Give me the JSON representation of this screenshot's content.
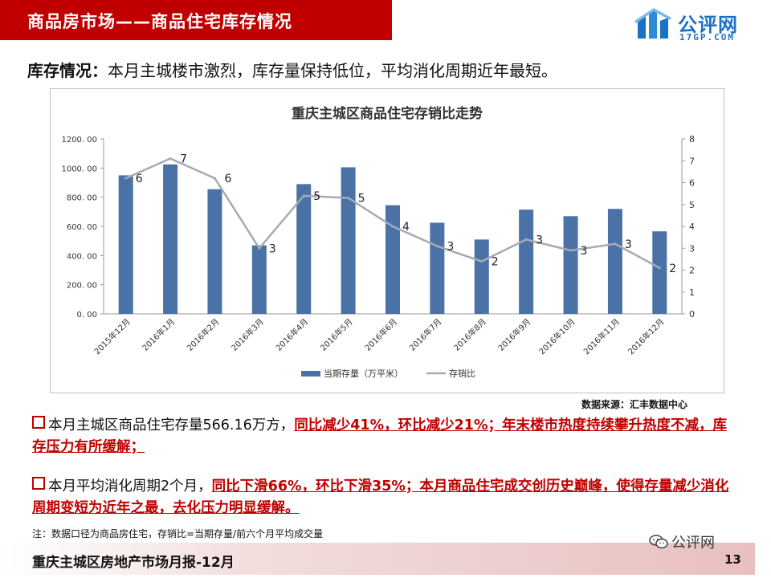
{
  "header": {
    "title": "商品房市场——商品住宅库存情况"
  },
  "logo": {
    "text": "公评网",
    "sub": "17GP.COM"
  },
  "headline": {
    "label": "库存情况：",
    "text": "本月主城楼市激烈，库存量保持低位，平均消化周期近年最短。"
  },
  "chart_data": {
    "type": "bar+line",
    "title": "重庆主城区商品住宅存销比走势",
    "categories": [
      "2015年12月",
      "2016年1月",
      "2016年2月",
      "2016年3月",
      "2016年4月",
      "2016年5月",
      "2016年6月",
      "2016年7月",
      "2016年8月",
      "2016年9月",
      "2016年10月",
      "2016年11月",
      "2016年12月"
    ],
    "series": [
      {
        "name": "当期存量（万平米）",
        "type": "bar",
        "axis": "left",
        "color": "#4a72a6",
        "values": [
          950,
          1025,
          855,
          470,
          890,
          1005,
          745,
          625,
          510,
          715,
          670,
          720,
          566
        ]
      },
      {
        "name": "存销比",
        "type": "line",
        "axis": "right",
        "color": "#a6aab8",
        "values": [
          6.2,
          7.1,
          6.2,
          3.0,
          5.4,
          5.3,
          4.0,
          3.1,
          2.4,
          3.4,
          2.9,
          3.2,
          2.1
        ],
        "labels": [
          "6",
          "7",
          "6",
          "3",
          "5",
          "5",
          "4",
          "3",
          "2",
          "3",
          "3",
          "3",
          "2"
        ]
      }
    ],
    "y_left": {
      "min": 0,
      "max": 1200,
      "ticks": [
        "0. 00",
        "200. 00",
        "400. 00",
        "600. 00",
        "800. 00",
        "1000. 00",
        "1200. 00"
      ]
    },
    "y_right": {
      "min": 0,
      "max": 8,
      "ticks": [
        "0",
        "1",
        "2",
        "3",
        "4",
        "5",
        "6",
        "7",
        "8"
      ]
    },
    "grid": false,
    "legend_position": "bottom"
  },
  "source": "数据来源：汇丰数据中心",
  "bullets": [
    {
      "plain": "本月主城区商品住宅存量566.16万方，",
      "highlight": "同比减少41%，环比减少21%；年末楼市热度持续攀升热度不减，库存压力有所缓解；"
    },
    {
      "plain": "本月平均消化周期2个月，",
      "highlight": "同比下滑66%，环比下滑35%；本月商品住宅成交创历史巅峰，使得存量减少消化周期变短为近年之最，去化压力明显缓解。"
    }
  ],
  "note": "注：数据口径为商品房住宅，存销比=当期存量/前六个月平均成交量",
  "footer": {
    "text": "重庆主城区房地产市场月报-12月",
    "page": "13"
  },
  "watermark": {
    "text": "公评网"
  }
}
